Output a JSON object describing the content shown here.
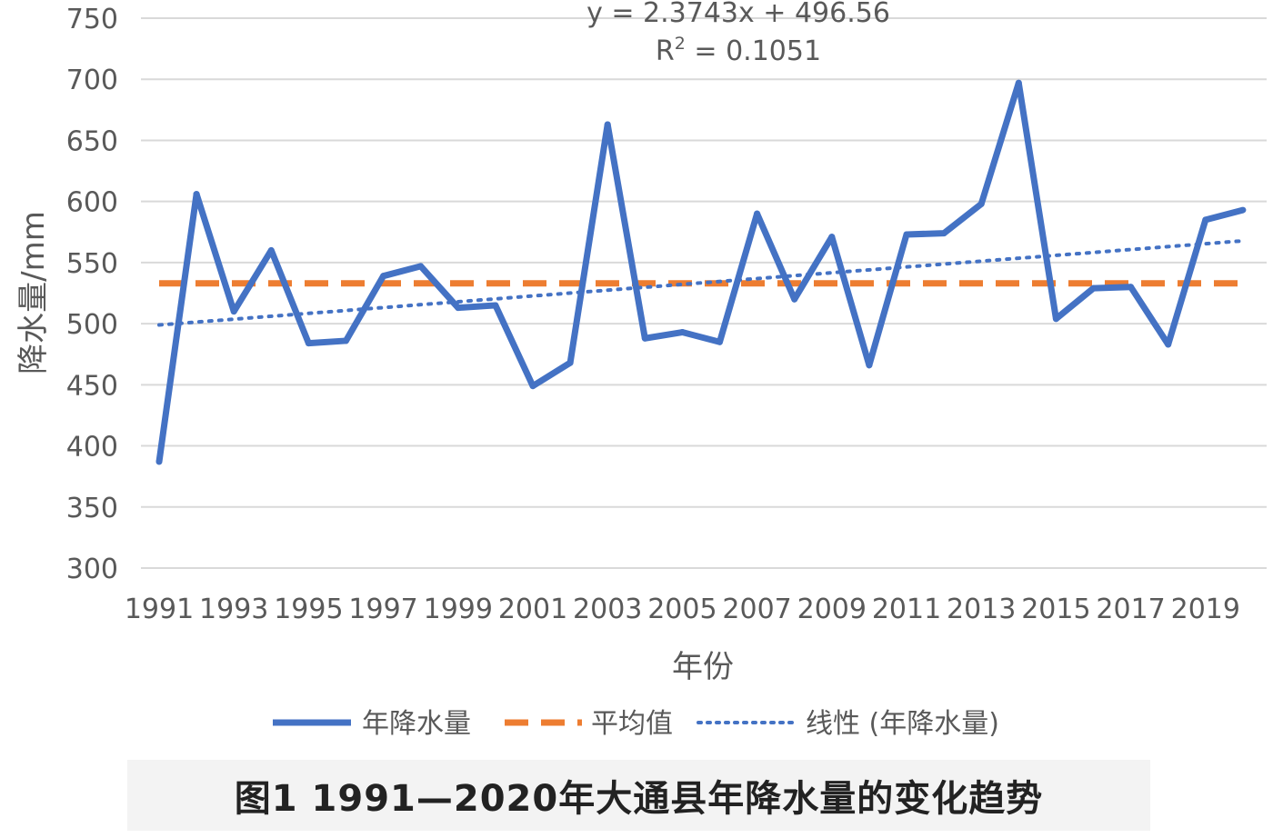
{
  "chart_data": {
    "type": "line",
    "title": "",
    "ylabel": "降水量/mm",
    "xlabel": "年份",
    "ylim": [
      300,
      750
    ],
    "yticks": [
      300,
      350,
      400,
      450,
      500,
      550,
      600,
      650,
      700,
      750
    ],
    "x": [
      1991,
      1992,
      1993,
      1994,
      1995,
      1996,
      1997,
      1998,
      1999,
      2000,
      2001,
      2002,
      2003,
      2004,
      2005,
      2006,
      2007,
      2008,
      2009,
      2010,
      2011,
      2012,
      2013,
      2014,
      2015,
      2016,
      2017,
      2018,
      2019,
      2020
    ],
    "xtick_labels": [
      "1991",
      "1993",
      "1995",
      "1997",
      "1999",
      "2001",
      "2003",
      "2005",
      "2007",
      "2009",
      "2011",
      "2013",
      "2015",
      "2017",
      "2019"
    ],
    "grid": "horizontal",
    "legend_position": "bottom",
    "series": [
      {
        "name": "年降水量",
        "style": "solid",
        "color": "#4472c4",
        "values": [
          387,
          606,
          510,
          560,
          484,
          486,
          539,
          547,
          513,
          515,
          449,
          468,
          663,
          488,
          493,
          485,
          590,
          520,
          571,
          466,
          573,
          574,
          598,
          697,
          504,
          529,
          530,
          483,
          585,
          593
        ]
      },
      {
        "name": "平均值",
        "style": "dashed",
        "color": "#ed7d31",
        "values": [
          533,
          533,
          533,
          533,
          533,
          533,
          533,
          533,
          533,
          533,
          533,
          533,
          533,
          533,
          533,
          533,
          533,
          533,
          533,
          533,
          533,
          533,
          533,
          533,
          533,
          533,
          533,
          533,
          533,
          533
        ]
      },
      {
        "name": "线性 (年降水量)",
        "style": "dotted",
        "color": "#4472c4",
        "trendline": {
          "slope": 2.3743,
          "intercept": 496.56
        }
      }
    ],
    "trendline_equation": "y = 2.3743x + 496.56",
    "r_squared_label": "R",
    "r_squared_sup": "2",
    "r_squared_value": " = 0.1051"
  },
  "caption": "图1  1991—2020年大通县年降水量的变化趋势"
}
